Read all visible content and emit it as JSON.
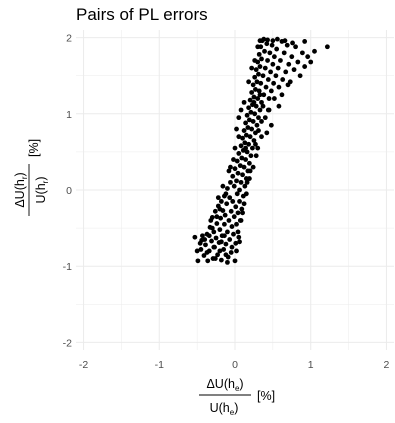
{
  "chart_data": {
    "type": "scatter",
    "title": "Pairs of PL errors",
    "x_tick_labels": [
      "-2",
      "-1",
      "0",
      "1",
      "2"
    ],
    "y_tick_labels": [
      "-2",
      "-1",
      "0",
      "1",
      "2"
    ],
    "xlabel": {
      "num_prefix": "ΔU(h",
      "num_sub": "e",
      "num_suffix": ")",
      "den_prefix": "U(h",
      "den_sub": "e",
      "den_suffix": ")",
      "unit": "[%]"
    },
    "ylabel": {
      "num_prefix": "ΔU(h",
      "num_sub": "r",
      "num_suffix": ")",
      "den_prefix": "U(h",
      "den_sub": "r",
      "den_suffix": ")",
      "unit": "[%]"
    },
    "xlim": [
      -2.1,
      2.1
    ],
    "ylim": [
      -2.1,
      2.1
    ],
    "grid": true,
    "point_color": "#000000",
    "background": "#ffffff",
    "grid_color": "#ebebeb",
    "points": [
      [
        -0.53,
        -0.62
      ],
      [
        -0.49,
        -0.93
      ],
      [
        -0.45,
        -0.78
      ],
      [
        -0.44,
        -0.66
      ],
      [
        -0.41,
        -0.86
      ],
      [
        -0.39,
        -0.72
      ],
      [
        -0.37,
        -0.58
      ],
      [
        -0.36,
        -0.93
      ],
      [
        -0.34,
        -0.8
      ],
      [
        -0.33,
        -0.49
      ],
      [
        -0.31,
        -0.67
      ],
      [
        -0.3,
        -0.36
      ],
      [
        -0.29,
        -0.9
      ],
      [
        -0.28,
        -0.55
      ],
      [
        -0.27,
        -0.75
      ],
      [
        -0.26,
        -0.28
      ],
      [
        -0.25,
        -0.63
      ],
      [
        -0.24,
        -0.44
      ],
      [
        -0.23,
        -0.85
      ],
      [
        -0.22,
        -0.21
      ],
      [
        -0.21,
        -0.69
      ],
      [
        -0.2,
        -0.52
      ],
      [
        -0.19,
        -0.37
      ],
      [
        -0.18,
        -0.15
      ],
      [
        -0.18,
        -0.92
      ],
      [
        -0.17,
        -0.6
      ],
      [
        -0.16,
        -0.27
      ],
      [
        -0.15,
        -0.78
      ],
      [
        -0.14,
        -0.08
      ],
      [
        -0.14,
        -0.45
      ],
      [
        -0.13,
        -0.33
      ],
      [
        -0.12,
        -0.71
      ],
      [
        -0.11,
        -0.18
      ],
      [
        -0.1,
        -0.55
      ],
      [
        -0.1,
        0.02
      ],
      [
        -0.09,
        -0.88
      ],
      [
        -0.08,
        -0.4
      ],
      [
        -0.07,
        -0.1
      ],
      [
        -0.07,
        -0.65
      ],
      [
        -0.06,
        0.1
      ],
      [
        -0.05,
        -0.28
      ],
      [
        -0.05,
        -0.82
      ],
      [
        -0.04,
        -0.48
      ],
      [
        -0.03,
        0.18
      ],
      [
        -0.03,
        -0.15
      ],
      [
        -0.02,
        -0.58
      ],
      [
        -0.01,
        -0.35
      ],
      [
        -0.01,
        0.05
      ],
      [
        0.0,
        -0.93
      ],
      [
        0.0,
        0.28
      ],
      [
        0.01,
        -0.22
      ],
      [
        0.01,
        -0.7
      ],
      [
        0.02,
        0.12
      ],
      [
        0.02,
        -0.45
      ],
      [
        0.03,
        0.38
      ],
      [
        0.03,
        -0.05
      ],
      [
        0.04,
        -0.3
      ],
      [
        0.04,
        0.22
      ],
      [
        0.05,
        -0.62
      ],
      [
        0.05,
        0.48
      ],
      [
        0.06,
        0.0
      ],
      [
        0.06,
        -0.15
      ],
      [
        0.07,
        0.32
      ],
      [
        0.07,
        -0.4
      ],
      [
        0.08,
        0.58
      ],
      [
        0.08,
        0.1
      ],
      [
        0.09,
        -0.25
      ],
      [
        0.09,
        0.42
      ],
      [
        0.1,
        0.68
      ],
      [
        0.1,
        0.2
      ],
      [
        0.11,
        -0.08
      ],
      [
        0.11,
        0.52
      ],
      [
        0.12,
        0.78
      ],
      [
        0.12,
        0.3
      ],
      [
        0.13,
        0.05
      ],
      [
        0.13,
        0.62
      ],
      [
        0.14,
        0.88
      ],
      [
        0.14,
        0.4
      ],
      [
        0.15,
        0.15
      ],
      [
        0.15,
        0.72
      ],
      [
        0.16,
        0.98
      ],
      [
        0.16,
        0.5
      ],
      [
        0.17,
        0.25
      ],
      [
        0.17,
        0.82
      ],
      [
        0.18,
        1.08
      ],
      [
        0.18,
        0.6
      ],
      [
        0.19,
        0.35
      ],
      [
        0.19,
        0.92
      ],
      [
        0.2,
        1.18
      ],
      [
        0.2,
        0.7
      ],
      [
        0.21,
        0.45
      ],
      [
        0.21,
        1.02
      ],
      [
        0.22,
        1.28
      ],
      [
        0.22,
        0.8
      ],
      [
        0.23,
        0.55
      ],
      [
        0.23,
        1.12
      ],
      [
        0.24,
        1.38
      ],
      [
        0.24,
        0.9
      ],
      [
        0.25,
        0.65
      ],
      [
        0.25,
        1.22
      ],
      [
        0.26,
        1.48
      ],
      [
        0.26,
        1.0
      ],
      [
        0.27,
        0.75
      ],
      [
        0.27,
        1.32
      ],
      [
        0.28,
        1.58
      ],
      [
        0.28,
        1.1
      ],
      [
        0.29,
        0.85
      ],
      [
        0.29,
        1.42
      ],
      [
        0.3,
        1.68
      ],
      [
        0.3,
        1.2
      ],
      [
        0.31,
        0.95
      ],
      [
        0.31,
        1.52
      ],
      [
        0.32,
        1.78
      ],
      [
        0.32,
        1.3
      ],
      [
        0.33,
        1.05
      ],
      [
        0.33,
        1.62
      ],
      [
        0.34,
        1.88
      ],
      [
        0.34,
        1.4
      ],
      [
        0.35,
        1.15
      ],
      [
        0.35,
        1.72
      ],
      [
        0.36,
        1.96
      ],
      [
        0.37,
        1.5
      ],
      [
        0.38,
        1.25
      ],
      [
        0.39,
        1.82
      ],
      [
        0.4,
        1.6
      ],
      [
        0.41,
        1.35
      ],
      [
        0.42,
        1.92
      ],
      [
        0.43,
        1.7
      ],
      [
        0.44,
        1.45
      ],
      [
        0.45,
        1.2
      ],
      [
        0.46,
        1.8
      ],
      [
        0.47,
        1.55
      ],
      [
        0.48,
        1.3
      ],
      [
        0.49,
        1.9
      ],
      [
        0.5,
        1.65
      ],
      [
        0.51,
        1.4
      ],
      [
        0.52,
        1.75
      ],
      [
        0.54,
        1.5
      ],
      [
        0.55,
        1.85
      ],
      [
        0.57,
        1.6
      ],
      [
        0.58,
        1.35
      ],
      [
        0.6,
        1.7
      ],
      [
        0.62,
        1.95
      ],
      [
        0.63,
        1.45
      ],
      [
        0.65,
        1.8
      ],
      [
        0.67,
        1.55
      ],
      [
        0.69,
        1.9
      ],
      [
        0.71,
        1.65
      ],
      [
        0.73,
        1.42
      ],
      [
        0.75,
        1.75
      ],
      [
        0.78,
        1.58
      ],
      [
        0.8,
        1.88
      ],
      [
        0.83,
        1.68
      ],
      [
        0.86,
        1.5
      ],
      [
        0.89,
        1.8
      ],
      [
        0.92,
        1.62
      ],
      [
        0.96,
        1.75
      ],
      [
        1.0,
        1.68
      ],
      [
        1.05,
        1.82
      ],
      [
        1.22,
        1.88
      ],
      [
        0.38,
        1.98
      ],
      [
        0.43,
        1.97
      ],
      [
        0.33,
        1.96
      ],
      [
        0.5,
        1.96
      ],
      [
        0.56,
        1.98
      ],
      [
        0.3,
        1.88
      ],
      [
        0.66,
        1.96
      ],
      [
        0.76,
        1.93
      ],
      [
        0.92,
        1.95
      ],
      [
        0.12,
        1.15
      ],
      [
        0.05,
        0.95
      ],
      [
        0.02,
        0.8
      ],
      [
        0.18,
        1.42
      ],
      [
        0.26,
        1.7
      ],
      [
        0.22,
        1.6
      ],
      [
        0.08,
        1.05
      ],
      [
        0.25,
        1.15
      ],
      [
        0.33,
        1.25
      ],
      [
        0.37,
        1.1
      ],
      [
        0.45,
        1.05
      ],
      [
        0.52,
        1.2
      ],
      [
        0.58,
        1.1
      ],
      [
        0.62,
        1.25
      ],
      [
        0.7,
        1.38
      ],
      [
        0.4,
        0.95
      ],
      [
        0.48,
        0.85
      ],
      [
        0.35,
        0.7
      ],
      [
        0.42,
        0.75
      ],
      [
        0.3,
        0.55
      ],
      [
        0.28,
        0.45
      ],
      [
        0.35,
        0.9
      ],
      [
        0.2,
        0.25
      ],
      [
        -0.02,
        0.4
      ],
      [
        -0.08,
        0.25
      ],
      [
        0.0,
        0.55
      ],
      [
        0.05,
        0.7
      ],
      [
        -0.12,
        -0.05
      ],
      [
        -0.16,
        0.05
      ],
      [
        -0.2,
        -0.25
      ],
      [
        -0.24,
        -0.35
      ],
      [
        -0.3,
        -0.5
      ],
      [
        -0.34,
        -0.6
      ],
      [
        -0.4,
        -0.65
      ],
      [
        -0.46,
        -0.7
      ],
      [
        -0.5,
        -0.8
      ],
      [
        -0.37,
        -0.82
      ],
      [
        -0.26,
        -0.9
      ],
      [
        -0.2,
        -0.8
      ],
      [
        -0.12,
        -0.85
      ],
      [
        -0.04,
        -0.75
      ],
      [
        0.04,
        -0.55
      ],
      [
        0.08,
        -0.4
      ],
      [
        0.12,
        -0.18
      ],
      [
        0.15,
        -0.05
      ],
      [
        -0.1,
        -0.95
      ],
      [
        -0.32,
        -0.4
      ],
      [
        -0.22,
        -0.1
      ],
      [
        -0.06,
        0.3
      ],
      [
        0.16,
        0.1
      ],
      [
        0.24,
        0.3
      ],
      [
        0.1,
        -0.3
      ],
      [
        -0.14,
        -0.6
      ],
      [
        -0.28,
        -0.75
      ],
      [
        -0.43,
        -0.6
      ],
      [
        0.02,
        -0.8
      ],
      [
        -0.18,
        -0.68
      ],
      [
        0.06,
        -0.68
      ],
      [
        0.14,
        0.55
      ],
      [
        0.19,
        0.15
      ],
      [
        0.27,
        0.6
      ],
      [
        0.31,
        0.78
      ],
      [
        0.44,
        1.05
      ]
    ]
  }
}
